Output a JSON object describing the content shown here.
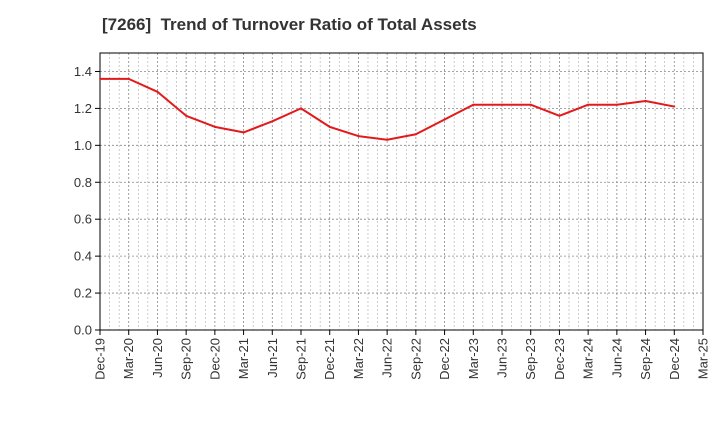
{
  "chart_data": {
    "type": "line",
    "title": "[7266]  Trend of Turnover Ratio of Total Assets",
    "xlabel": "",
    "ylabel": "",
    "x_tick_labels": [
      "Dec-19",
      "Mar-20",
      "Jun-20",
      "Sep-20",
      "Dec-20",
      "Mar-21",
      "Jun-21",
      "Sep-21",
      "Dec-21",
      "Mar-22",
      "Jun-22",
      "Sep-22",
      "Dec-22",
      "Mar-23",
      "Jun-23",
      "Sep-23",
      "Dec-23",
      "Mar-24",
      "Jun-24",
      "Sep-24",
      "Dec-24",
      "Mar-25"
    ],
    "y_ticks": [
      0.0,
      0.2,
      0.4,
      0.6,
      0.8,
      1.0,
      1.2,
      1.4
    ],
    "ylim": [
      0,
      1.5
    ],
    "grid": true,
    "series": [
      {
        "color": "#e31a1c",
        "x": [
          "Dec-19",
          "Mar-20",
          "Jun-20",
          "Sep-20",
          "Dec-20",
          "Mar-21",
          "Jun-21",
          "Sep-21",
          "Dec-21",
          "Mar-22",
          "Jun-22",
          "Sep-22",
          "Dec-22",
          "Mar-23",
          "Jun-23",
          "Sep-23",
          "Dec-23",
          "Mar-24",
          "Jun-24",
          "Sep-24",
          "Dec-24"
        ],
        "values": [
          1.36,
          1.36,
          1.29,
          1.16,
          1.1,
          1.07,
          1.13,
          1.2,
          1.1,
          1.05,
          1.03,
          1.06,
          1.14,
          1.22,
          1.22,
          1.22,
          1.16,
          1.22,
          1.22,
          1.24,
          1.21
        ]
      }
    ]
  }
}
